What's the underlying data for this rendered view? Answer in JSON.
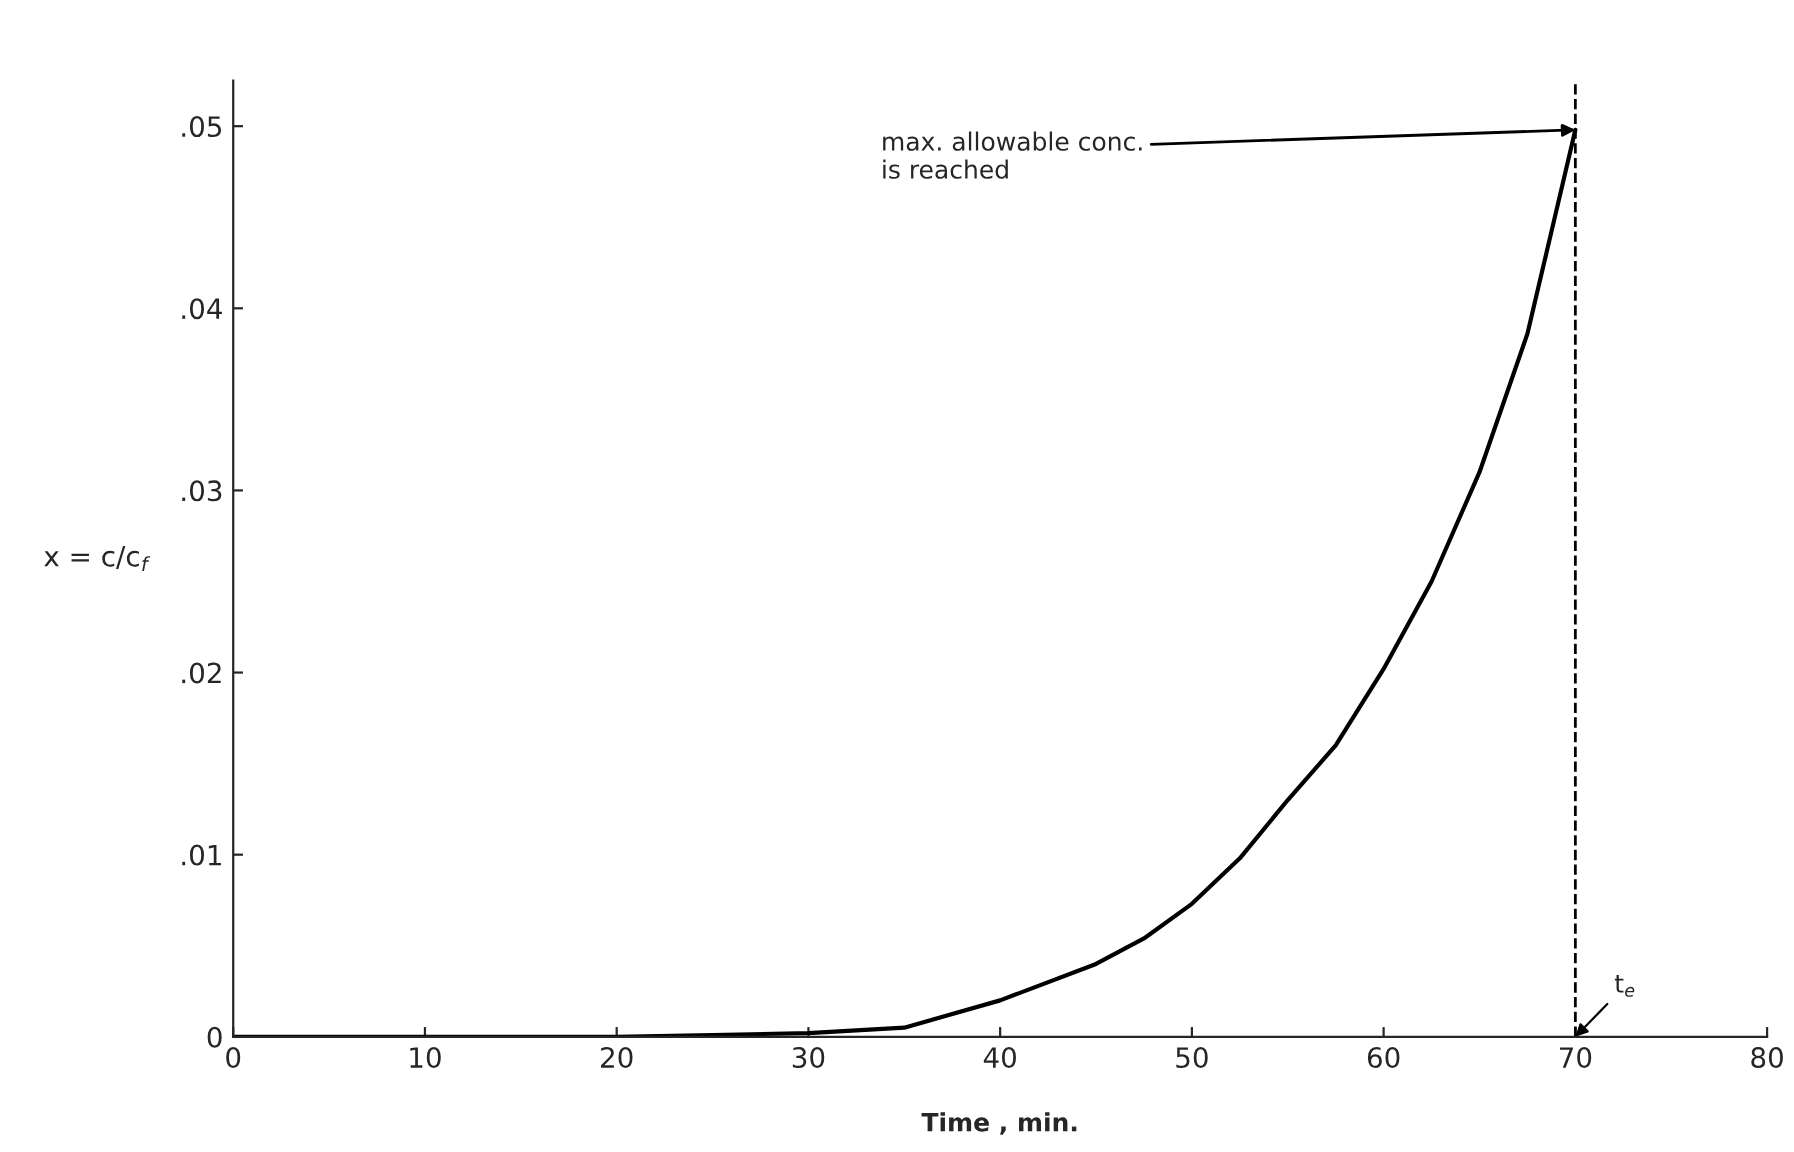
{
  "chart_data": {
    "type": "line",
    "xlabel": "Time , min.",
    "ylabel": "x = c/c$_{f}$",
    "x": [
      0,
      10,
      20,
      25,
      30,
      35,
      40,
      45,
      47.5,
      50,
      52.5,
      55,
      57.5,
      60,
      62.5,
      65,
      67.5,
      70
    ],
    "series": [
      {
        "color": "#000000",
        "values": [
          0,
          0,
          0,
          0.0001,
          0.0002,
          0.0005,
          0.002,
          0.004,
          0.0054,
          0.0073,
          0.0098,
          0.013,
          0.016,
          0.0202,
          0.025,
          0.031,
          0.0386,
          0.0498
        ]
      }
    ],
    "xlim": [
      0,
      80
    ],
    "xticks": [
      0,
      10,
      20,
      30,
      40,
      50,
      60,
      70,
      80
    ],
    "ylim": [
      0,
      0.0525
    ],
    "yticks": [
      0,
      {
        "value": 0.01,
        "label": ".01"
      },
      {
        "value": 0.02,
        "label": ".02"
      },
      {
        "value": 0.03,
        "label": ".03"
      },
      {
        "value": 0.04,
        "label": ".04"
      },
      {
        "value": 0.05,
        "label": ".05"
      }
    ],
    "ref_lines": [
      {
        "axis": "x",
        "value": 70,
        "label": null,
        "color": "#000000",
        "line_style": "dashed"
      }
    ],
    "annotations": [
      {
        "text": "max. allowable conc.\nis reached",
        "x": 70,
        "y": 0.0498
      },
      {
        "text": "t$_{e}$",
        "x": 70,
        "y": 0
      }
    ],
    "grid": false,
    "legend": false,
    "marker": "none",
    "line_style": "solid"
  }
}
